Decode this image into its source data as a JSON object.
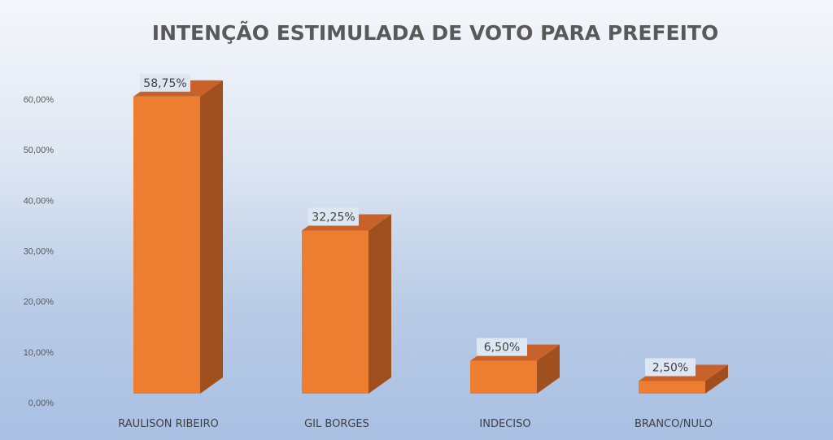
{
  "chart_data": {
    "type": "bar",
    "title": "INTENÇÃO ESTIMULADA DE VOTO PARA PREFEITO",
    "categories": [
      "RAULISON RIBEIRO",
      "GIL BORGES",
      "INDECISO",
      "BRANCO/NULO"
    ],
    "values": [
      58.75,
      32.25,
      6.5,
      2.5
    ],
    "data_labels": [
      "58,75%",
      "32,25%",
      "6,50%",
      "2,50%"
    ],
    "yticks": [
      "0,00%",
      "10,00%",
      "20,00%",
      "30,00%",
      "40,00%",
      "50,00%",
      "60,00%"
    ],
    "ylim": [
      0,
      60
    ],
    "xlabel": "",
    "ylabel": "",
    "grid": false,
    "legend": "none",
    "style": "3d-column"
  },
  "colors": {
    "bar_front": "#ed7d31",
    "bar_side": "#a0501f",
    "bar_top": "#c8622a",
    "label_box": "#dde7f4"
  }
}
